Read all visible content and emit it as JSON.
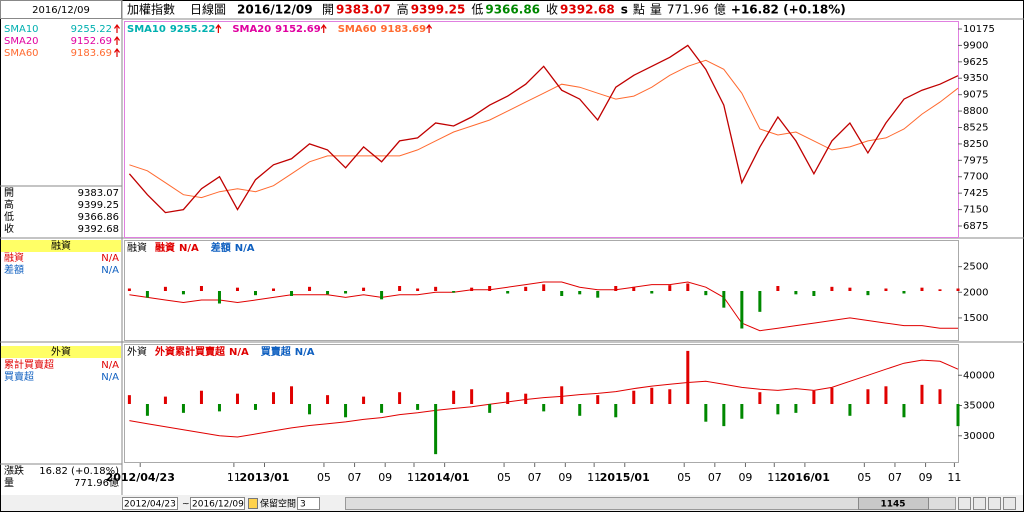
{
  "header": {
    "name": "加權指數",
    "period": "日線圖",
    "date": "2016/12/09",
    "quote": [
      {
        "label": "開",
        "value": "9383.07",
        "color": "#e00000"
      },
      {
        "label": "高",
        "value": "9399.25",
        "color": "#e00000"
      },
      {
        "label": "低",
        "value": "9366.86",
        "color": "#008800"
      },
      {
        "label": "收",
        "value": "9392.68",
        "color": "#e00000"
      }
    ],
    "flag": "s",
    "unit": "點",
    "volume_label": "量",
    "volume": "771.96",
    "volume_unit": "億",
    "change": "+16.82 (+0.18%)"
  },
  "left_panel": {
    "date": "2016/12/09",
    "foreign_items": [
      "累計買賣超",
      "買賣超"
    ],
    "change_label": "漲跌",
    "change": "16.82 (+0.18%)",
    "volume_label": "量",
    "volume": "771.96億"
  },
  "toolbar": {
    "from": "2012/04/23",
    "sep": "~",
    "to": "2016/12/09",
    "reserve": "保留空間",
    "reserve_value": "3",
    "position": "1145"
  },
  "chart_data": [
    {
      "type": "line",
      "color": "#c00000",
      "x": [
        2012.25,
        2012.35,
        2012.45,
        2012.55,
        2012.65,
        2012.75,
        2012.85,
        2012.95,
        2013.05,
        2013.15,
        2013.25,
        2013.35,
        2013.45,
        2013.55,
        2013.65,
        2013.75,
        2013.85,
        2013.95,
        2014.05,
        2014.15,
        2014.25,
        2014.35,
        2014.45,
        2014.55,
        2014.65,
        2014.75,
        2014.85,
        2014.95,
        2015.05,
        2015.15,
        2015.25,
        2015.35,
        2015.45,
        2015.55,
        2015.65,
        2015.75,
        2015.85,
        2015.95,
        2016.05,
        2016.15,
        2016.25,
        2016.35,
        2016.45,
        2016.55,
        2016.65,
        2016.75,
        2016.85
      ],
      "values": [
        7750,
        7400,
        7100,
        7150,
        7500,
        7700,
        7150,
        7650,
        7900,
        8000,
        8250,
        8150,
        7850,
        8200,
        7950,
        8300,
        8350,
        8600,
        8550,
        8700,
        8900,
        9050,
        9250,
        9550,
        9150,
        9000,
        8650,
        9200,
        9400,
        9550,
        9700,
        9900,
        9500,
        8900,
        7600,
        8200,
        8700,
        8300,
        7750,
        8300,
        8600,
        8100,
        8600,
        9000,
        9150,
        9250,
        9392.68
      ],
      "series": [
        {
          "name": "SMA10",
          "color": "#00b0b0",
          "last": 9255.22
        },
        {
          "name": "SMA20",
          "color": "#e000a0",
          "last": 9152.69
        },
        {
          "name": "SMA60",
          "color": "#ff6a30",
          "last": 9183.69,
          "values": [
            7900,
            7800,
            7600,
            7400,
            7350,
            7450,
            7500,
            7450,
            7550,
            7750,
            7950,
            8050,
            8050,
            8050,
            8050,
            8050,
            8150,
            8300,
            8450,
            8550,
            8650,
            8800,
            8950,
            9100,
            9250,
            9200,
            9100,
            9000,
            9050,
            9200,
            9400,
            9550,
            9650,
            9500,
            9100,
            8500,
            8400,
            8450,
            8300,
            8150,
            8200,
            8300,
            8350,
            8500,
            8750,
            8950,
            9183.69
          ]
        }
      ],
      "xlim": [
        2012.22,
        2016.85
      ],
      "ylim": [
        6674,
        10292
      ],
      "yticks": [
        10175,
        9900,
        9625,
        9350,
        9075,
        8800,
        8525,
        8250,
        7975,
        7700,
        7425,
        7150,
        6875
      ]
    },
    {
      "type": "line",
      "title": "融資",
      "x": [
        2012.25,
        2012.35,
        2012.45,
        2012.55,
        2012.65,
        2012.75,
        2012.85,
        2012.95,
        2013.05,
        2013.15,
        2013.25,
        2013.35,
        2013.45,
        2013.55,
        2013.65,
        2013.75,
        2013.85,
        2013.95,
        2014.05,
        2014.15,
        2014.25,
        2014.35,
        2014.45,
        2014.55,
        2014.65,
        2014.75,
        2014.85,
        2014.95,
        2015.05,
        2015.15,
        2015.25,
        2015.35,
        2015.45,
        2015.55,
        2015.65,
        2015.75,
        2015.85,
        2015.95,
        2016.05,
        2016.15,
        2016.25,
        2016.35,
        2016.45,
        2016.55,
        2016.65,
        2016.75,
        2016.85
      ],
      "series": [
        {
          "name": "融資",
          "color": "#e00000",
          "legend_value": "N/A",
          "values": [
            1950,
            1900,
            1850,
            1800,
            1850,
            1850,
            1800,
            1850,
            1900,
            1950,
            1950,
            1950,
            1900,
            1950,
            1900,
            1950,
            1950,
            2000,
            2000,
            2050,
            2050,
            2100,
            2150,
            2200,
            2200,
            2100,
            2050,
            2050,
            2100,
            2150,
            2150,
            2200,
            2100,
            1900,
            1400,
            1250,
            1300,
            1350,
            1400,
            1450,
            1500,
            1450,
            1400,
            1350,
            1350,
            1300,
            1300
          ]
        },
        {
          "name": "差額",
          "color": "#1060c0",
          "legend_value": "N/A",
          "axis": "y2",
          "up_color": "#e00000",
          "down_color": "#008800",
          "values": [
            3,
            -8,
            5,
            -4,
            6,
            -15,
            4,
            -5,
            3,
            -6,
            5,
            -4,
            -3,
            4,
            -10,
            6,
            3,
            5,
            -2,
            4,
            6,
            -3,
            5,
            8,
            -6,
            -4,
            -8,
            6,
            5,
            -3,
            7,
            9,
            -5,
            -20,
            -45,
            -25,
            6,
            -4,
            -6,
            5,
            4,
            -5,
            3,
            -3,
            4,
            2,
            3
          ]
        }
      ],
      "xlim": [
        2012.22,
        2016.85
      ],
      "ylim": [
        1050,
        3000
      ],
      "yticks": [
        2500,
        2000,
        1500
      ],
      "y2lim": [
        -60,
        60
      ]
    },
    {
      "type": "line",
      "title": "外資",
      "x": [
        2012.25,
        2012.35,
        2012.45,
        2012.55,
        2012.65,
        2012.75,
        2012.85,
        2012.95,
        2013.05,
        2013.15,
        2013.25,
        2013.35,
        2013.45,
        2013.55,
        2013.65,
        2013.75,
        2013.85,
        2013.95,
        2014.05,
        2014.15,
        2014.25,
        2014.35,
        2014.45,
        2014.55,
        2014.65,
        2014.75,
        2014.85,
        2014.95,
        2015.05,
        2015.15,
        2015.25,
        2015.35,
        2015.45,
        2015.55,
        2015.65,
        2015.75,
        2015.85,
        2015.95,
        2016.05,
        2016.15,
        2016.25,
        2016.35,
        2016.45,
        2016.55,
        2016.65,
        2016.75,
        2016.85
      ],
      "series": [
        {
          "name": "外資累計買賣超",
          "color": "#e00000",
          "legend_value": "N/A",
          "values": [
            32500,
            32000,
            31500,
            31000,
            30500,
            30000,
            29800,
            30300,
            30800,
            31300,
            31700,
            32000,
            32300,
            32700,
            33000,
            33500,
            33800,
            34200,
            34500,
            34800,
            35200,
            35600,
            36000,
            36300,
            36500,
            36800,
            37000,
            37300,
            37800,
            38200,
            38500,
            38800,
            39000,
            38500,
            38000,
            37700,
            37500,
            37800,
            37500,
            38000,
            39000,
            40000,
            41000,
            42000,
            42500,
            42300,
            41000
          ]
        },
        {
          "name": "買賣超",
          "color": "#1060c0",
          "legend_value": "N/A",
          "axis": "y2",
          "up_color": "#e00000",
          "down_color": "#008800",
          "values": [
            60,
            -80,
            50,
            -60,
            90,
            -50,
            70,
            -40,
            80,
            120,
            -70,
            60,
            -90,
            50,
            -60,
            80,
            -40,
            -340,
            90,
            100,
            -60,
            80,
            70,
            -50,
            120,
            -80,
            60,
            -90,
            90,
            110,
            100,
            360,
            -120,
            -150,
            -100,
            80,
            -70,
            -60,
            90,
            110,
            -80,
            100,
            120,
            -90,
            130,
            100,
            -150
          ]
        }
      ],
      "xlim": [
        2012.22,
        2016.85
      ],
      "ylim": [
        25500,
        45000
      ],
      "yticks": [
        40000,
        35000,
        30000
      ],
      "y2lim": [
        -400,
        400
      ],
      "xticks": [
        {
          "value": 2012.31,
          "label": "2012/04/23"
        },
        {
          "value": 2012.83,
          "label": "11"
        },
        {
          "value": 2013.0,
          "label": "2013/01"
        },
        {
          "value": 2013.33,
          "label": "05"
        },
        {
          "value": 2013.5,
          "label": "07"
        },
        {
          "value": 2013.67,
          "label": "09"
        },
        {
          "value": 2013.83,
          "label": "11"
        },
        {
          "value": 2014.0,
          "label": "2014/01"
        },
        {
          "value": 2014.33,
          "label": "05"
        },
        {
          "value": 2014.5,
          "label": "07"
        },
        {
          "value": 2014.67,
          "label": "09"
        },
        {
          "value": 2014.83,
          "label": "11"
        },
        {
          "value": 2015.0,
          "label": "2015/01"
        },
        {
          "value": 2015.33,
          "label": "05"
        },
        {
          "value": 2015.5,
          "label": "07"
        },
        {
          "value": 2015.67,
          "label": "09"
        },
        {
          "value": 2015.83,
          "label": "11"
        },
        {
          "value": 2016.0,
          "label": "2016/01"
        },
        {
          "value": 2016.33,
          "label": "05"
        },
        {
          "value": 2016.5,
          "label": "07"
        },
        {
          "value": 2016.67,
          "label": "09"
        },
        {
          "value": 2016.83,
          "label": "11"
        }
      ]
    }
  ]
}
